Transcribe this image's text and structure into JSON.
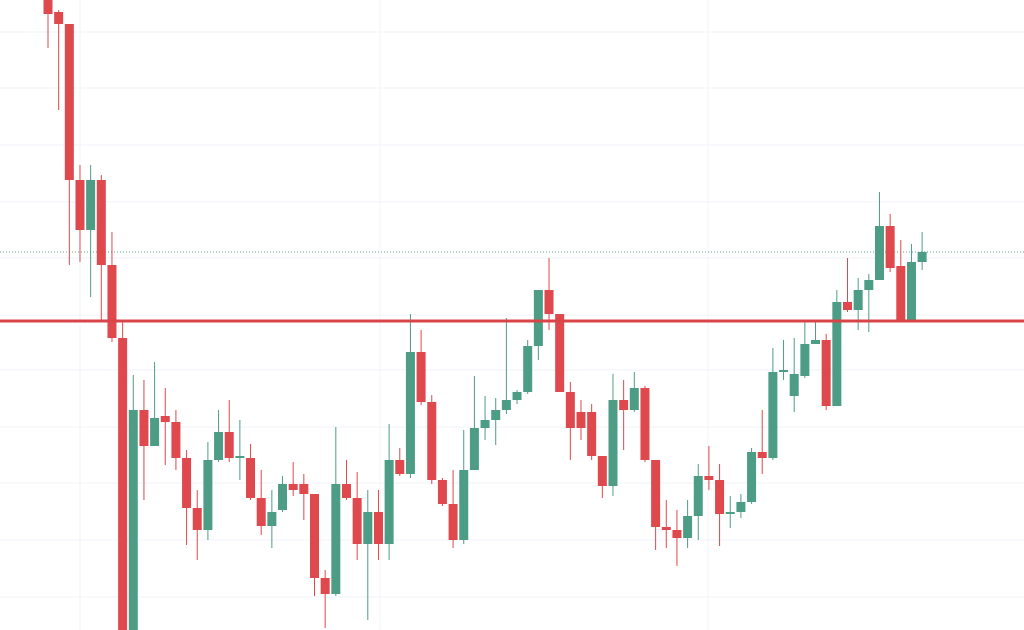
{
  "chart_data": {
    "type": "candlestick",
    "ylim": [
      0,
      630
    ],
    "up_color": "#4d9c85",
    "down_color": "#df484c",
    "support_level": 309,
    "support_color": "#d94448",
    "last_price": 378,
    "last_price_color": "#5aa596",
    "open": [
      630,
      618,
      606,
      450,
      400,
      450,
      365,
      292,
      0,
      220,
      184,
      214,
      208,
      172,
      122,
      100,
      170,
      198,
      172,
      172,
      132,
      104,
      120,
      146,
      146,
      136,
      52,
      36,
      146,
      132,
      86,
      118,
      86,
      170,
      156,
      278,
      228,
      150,
      126,
      90,
      160,
      202,
      210,
      220,
      230,
      238,
      284,
      340,
      316,
      238,
      218,
      218,
      174,
      144,
      230,
      220,
      242,
      170,
      103,
      100,
      92,
      114,
      154,
      150,
      116,
      118,
      128,
      178,
      172,
      258,
      234,
      254,
      286,
      290,
      224,
      328,
      320,
      340,
      350,
      404,
      364,
      310,
      368
    ],
    "high": [
      630,
      620,
      606,
      465,
      465,
      455,
      398,
      310,
      255,
      250,
      268,
      242,
      220,
      180,
      140,
      188,
      220,
      230,
      210,
      186,
      160,
      140,
      154,
      168,
      156,
      136,
      60,
      203,
      170,
      158,
      140,
      140,
      206,
      182,
      316,
      300,
      235,
      152,
      160,
      200,
      254,
      234,
      232,
      312,
      240,
      290,
      340,
      372,
      316,
      248,
      230,
      226,
      174,
      256,
      250,
      258,
      244,
      170,
      130,
      120,
      130,
      166,
      184,
      166,
      134,
      136,
      182,
      220,
      282,
      290,
      292,
      308,
      308,
      296,
      340,
      372,
      352,
      356,
      438,
      416,
      390,
      386,
      398
    ],
    "low": [
      582,
      520,
      365,
      368,
      333,
      310,
      288,
      0,
      0,
      130,
      184,
      165,
      160,
      85,
      70,
      90,
      168,
      168,
      150,
      130,
      95,
      82,
      118,
      134,
      110,
      34,
      2,
      34,
      130,
      70,
      10,
      70,
      70,
      154,
      152,
      225,
      146,
      124,
      82,
      86,
      160,
      190,
      185,
      216,
      226,
      236,
      270,
      300,
      238,
      170,
      190,
      170,
      132,
      134,
      180,
      218,
      168,
      80,
      82,
      64,
      82,
      90,
      140,
      84,
      102,
      112,
      126,
      156,
      170,
      250,
      218,
      252,
      286,
      220,
      224,
      318,
      300,
      298,
      350,
      358,
      310,
      310,
      360
    ],
    "close": [
      616,
      606,
      450,
      400,
      450,
      365,
      292,
      0,
      220,
      184,
      212,
      208,
      172,
      122,
      100,
      170,
      198,
      172,
      174,
      132,
      104,
      118,
      146,
      140,
      136,
      52,
      36,
      146,
      132,
      86,
      118,
      86,
      170,
      156,
      278,
      228,
      150,
      126,
      90,
      160,
      202,
      210,
      220,
      230,
      238,
      284,
      340,
      316,
      238,
      202,
      202,
      174,
      144,
      230,
      220,
      242,
      170,
      103,
      100,
      92,
      114,
      154,
      150,
      116,
      118,
      128,
      178,
      172,
      258,
      260,
      256,
      286,
      290,
      224,
      328,
      320,
      340,
      350,
      404,
      362,
      310,
      368,
      378
    ]
  }
}
